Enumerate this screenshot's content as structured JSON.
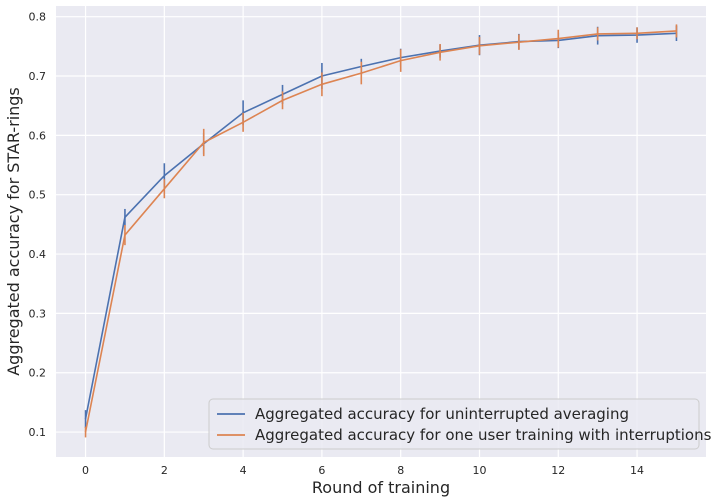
{
  "chart_data": {
    "type": "line",
    "title": "",
    "xlabel": "Round of training",
    "ylabel": "Aggregated accuracy for STAR-rings",
    "xlim": [
      -0.75,
      15.75
    ],
    "ylim": [
      0.058,
      0.818
    ],
    "xticks": [
      0,
      2,
      4,
      6,
      8,
      10,
      12,
      14
    ],
    "xtick_labels": [
      "0",
      "2",
      "4",
      "6",
      "8",
      "10",
      "12",
      "14"
    ],
    "yticks": [
      0.1,
      0.2,
      0.3,
      0.4,
      0.5,
      0.6,
      0.7,
      0.8
    ],
    "ytick_labels": [
      "0.1",
      "0.2",
      "0.3",
      "0.4",
      "0.5",
      "0.6",
      "0.7",
      "0.8"
    ],
    "grid": true,
    "legend_position": "bottom-right",
    "x": [
      0,
      1,
      2,
      3,
      4,
      5,
      6,
      7,
      8,
      9,
      10,
      11,
      12,
      13,
      14,
      15
    ],
    "series": [
      {
        "name": "Aggregated accuracy for uninterrupted averaging",
        "color": "#4c72b0",
        "values": [
          0.122,
          0.462,
          0.532,
          0.586,
          0.638,
          0.669,
          0.7,
          0.716,
          0.731,
          0.742,
          0.752,
          0.758,
          0.76,
          0.768,
          0.769,
          0.772
        ],
        "errors": [
          0.015,
          0.014,
          0.021,
          0.018,
          0.021,
          0.016,
          0.022,
          0.013,
          0.015,
          0.011,
          0.017,
          0.013,
          0.013,
          0.015,
          0.013,
          0.013
        ]
      },
      {
        "name": "Aggregated accuracy for one user training with interruptions",
        "color": "#dd8452",
        "values": [
          0.1,
          0.432,
          0.51,
          0.588,
          0.622,
          0.659,
          0.686,
          0.705,
          0.726,
          0.74,
          0.751,
          0.757,
          0.763,
          0.771,
          0.772,
          0.776
        ],
        "errors": [
          0.009,
          0.017,
          0.016,
          0.023,
          0.016,
          0.015,
          0.02,
          0.019,
          0.019,
          0.014,
          0.015,
          0.013,
          0.015,
          0.011,
          0.01,
          0.011
        ]
      }
    ]
  }
}
